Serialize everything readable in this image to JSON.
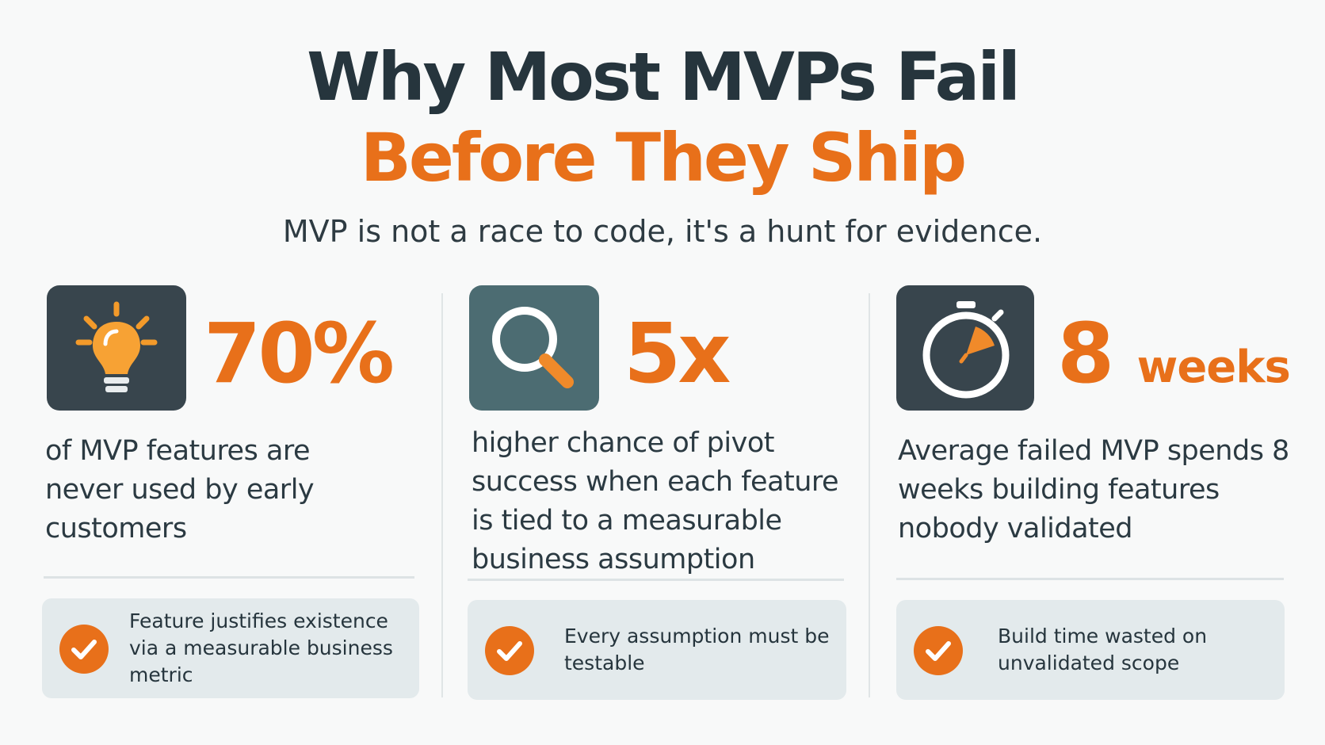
{
  "header": {
    "title_line1": "Why Most MVPs Fail",
    "title_line2": "Before They Ship",
    "subtitle": "MVP is not a race to code, it's a hunt for evidence."
  },
  "columns": [
    {
      "stat": "70%",
      "description": "of MVP features are never used by early customers",
      "note": "Feature justifies existence via a measurable business metric"
    },
    {
      "stat": "5x",
      "description": "higher chance of pivot success when each feature is tied to a measurable business assumption",
      "note": "Every assumption must be testable"
    },
    {
      "stat": "8",
      "unit": "weeks",
      "description": "Average failed MVP spends 8 weeks building features nobody validated",
      "note": "Build time wasted on unvalidated scope"
    }
  ]
}
